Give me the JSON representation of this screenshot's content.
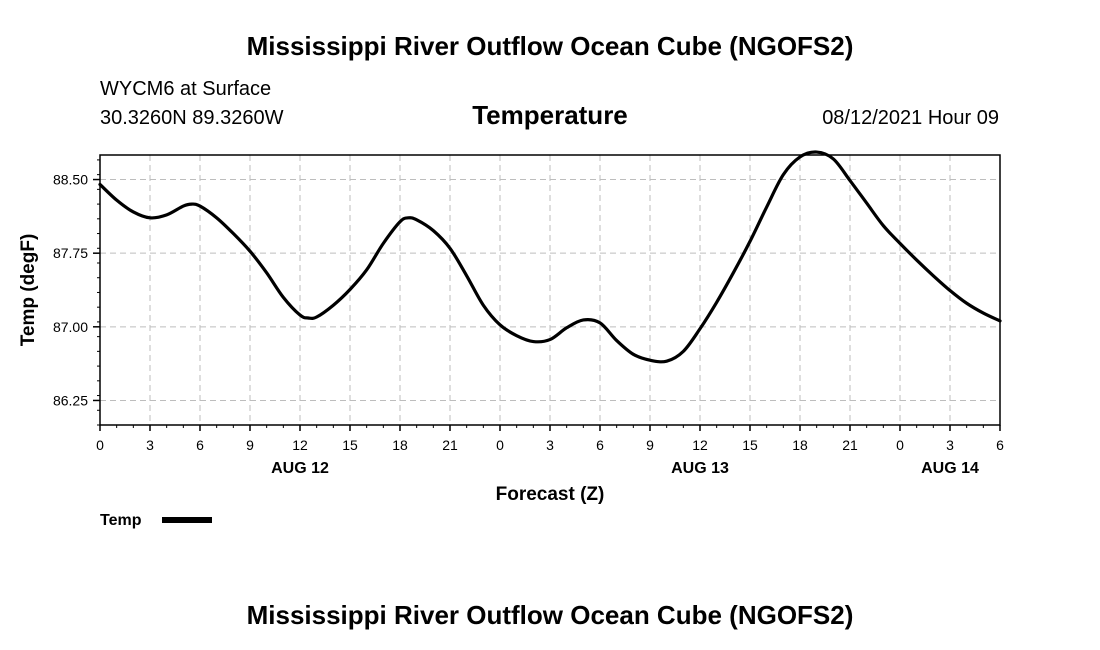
{
  "header": {
    "title": "Mississippi River Outflow Ocean Cube (NGOFS2)",
    "station": "WYCM6 at Surface",
    "coords": "30.3260N  89.3260W",
    "variable": "Temperature",
    "datetime": "08/12/2021 Hour 09"
  },
  "footer": {
    "title": "Mississippi River Outflow Ocean Cube (NGOFS2)"
  },
  "colors": {
    "line": "#000000",
    "grid": "#bdbdbd"
  },
  "chart_data": {
    "type": "line",
    "title": "Temperature",
    "xlabel": "Forecast (Z)",
    "ylabel": "Temp (degF)",
    "xlim": [
      0,
      54
    ],
    "ylim": [
      86.0,
      88.75
    ],
    "grid": true,
    "x_ticks": [
      0,
      3,
      6,
      9,
      12,
      15,
      18,
      21,
      24,
      27,
      30,
      33,
      36,
      39,
      42,
      45,
      48,
      51,
      54
    ],
    "x_tick_labels": [
      "0",
      "3",
      "6",
      "9",
      "12",
      "15",
      "18",
      "21",
      "0",
      "3",
      "6",
      "9",
      "12",
      "15",
      "18",
      "21",
      "0",
      "3",
      "6"
    ],
    "y_ticks": [
      86.25,
      87.0,
      87.75,
      88.5
    ],
    "y_tick_labels": [
      "86.25",
      "87.00",
      "87.75",
      "88.50"
    ],
    "date_labels": [
      {
        "x": 12,
        "label": "AUG 12"
      },
      {
        "x": 36,
        "label": "AUG 13"
      },
      {
        "x": 51,
        "label": "AUG 14"
      }
    ],
    "legend": {
      "label": "Temp",
      "position": "bottom-left"
    },
    "series": [
      {
        "name": "Temp",
        "x": [
          0,
          1,
          2,
          3,
          4,
          5,
          5.5,
          6,
          7,
          8,
          9,
          10,
          11,
          12,
          12.5,
          13,
          14,
          15,
          16,
          17,
          18,
          18.5,
          19,
          20,
          21,
          22,
          23,
          24,
          25,
          26,
          27,
          28,
          29,
          30,
          31,
          32,
          33,
          34,
          35,
          36,
          37,
          38,
          39,
          40,
          41,
          42,
          43,
          44,
          45,
          46,
          47,
          48,
          49,
          50,
          51,
          52,
          53,
          54
        ],
        "values": [
          88.45,
          88.29,
          88.17,
          88.11,
          88.14,
          88.23,
          88.25,
          88.23,
          88.11,
          87.95,
          87.77,
          87.55,
          87.3,
          87.12,
          87.09,
          87.1,
          87.22,
          87.38,
          87.58,
          87.85,
          88.07,
          88.11,
          88.09,
          87.98,
          87.8,
          87.52,
          87.22,
          87.02,
          86.91,
          86.85,
          86.87,
          86.99,
          87.07,
          87.04,
          86.86,
          86.72,
          86.66,
          86.65,
          86.75,
          86.98,
          87.25,
          87.55,
          87.87,
          88.22,
          88.55,
          88.73,
          88.78,
          88.71,
          88.49,
          88.26,
          88.03,
          87.85,
          87.68,
          87.52,
          87.37,
          87.24,
          87.14,
          87.06
        ]
      }
    ]
  }
}
